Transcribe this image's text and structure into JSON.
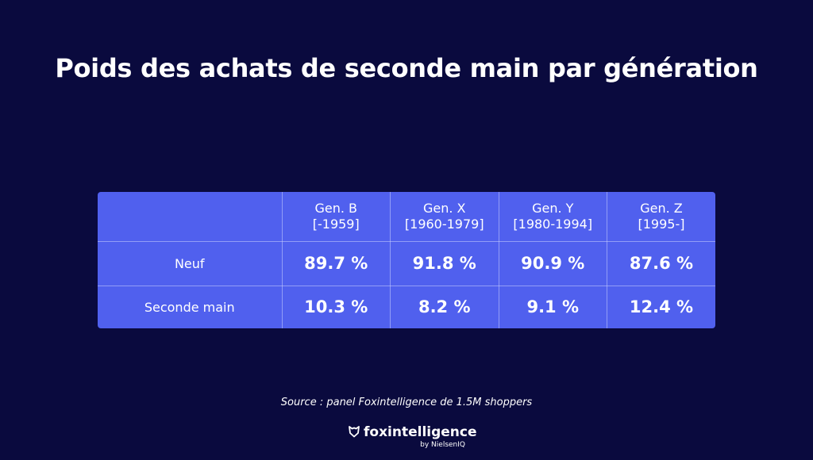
{
  "title": "Poids des achats de seconde main par génération",
  "source": "Source : panel Foxintelligence de 1.5M shoppers",
  "brand": {
    "name": "foxintelligence",
    "sub": "by NielsenIQ",
    "logo_icon": "fox-shield-icon"
  },
  "colors": {
    "background": "#0a0a3e",
    "table_fill": "#5060ee",
    "text": "#ffffff"
  },
  "chart_data": {
    "type": "table",
    "title": "Poids des achats de seconde main par génération",
    "columns": [
      {
        "name": "Gen. B",
        "range": "[-1959]"
      },
      {
        "name": "Gen. X",
        "range": "[1960-1979]"
      },
      {
        "name": "Gen. Y",
        "range": "[1980-1994]"
      },
      {
        "name": "Gen. Z",
        "range": "[1995-]"
      }
    ],
    "rows": [
      {
        "label": "Neuf",
        "values": [
          89.7,
          91.8,
          90.9,
          87.6
        ],
        "display": [
          "89.7 %",
          "91.8 %",
          "90.9 %",
          "87.6 %"
        ]
      },
      {
        "label": "Seconde main",
        "values": [
          10.3,
          8.2,
          9.1,
          12.4
        ],
        "display": [
          "10.3 %",
          "8.2 %",
          "9.1 %",
          "12.4 %"
        ]
      }
    ],
    "unit": "%"
  }
}
